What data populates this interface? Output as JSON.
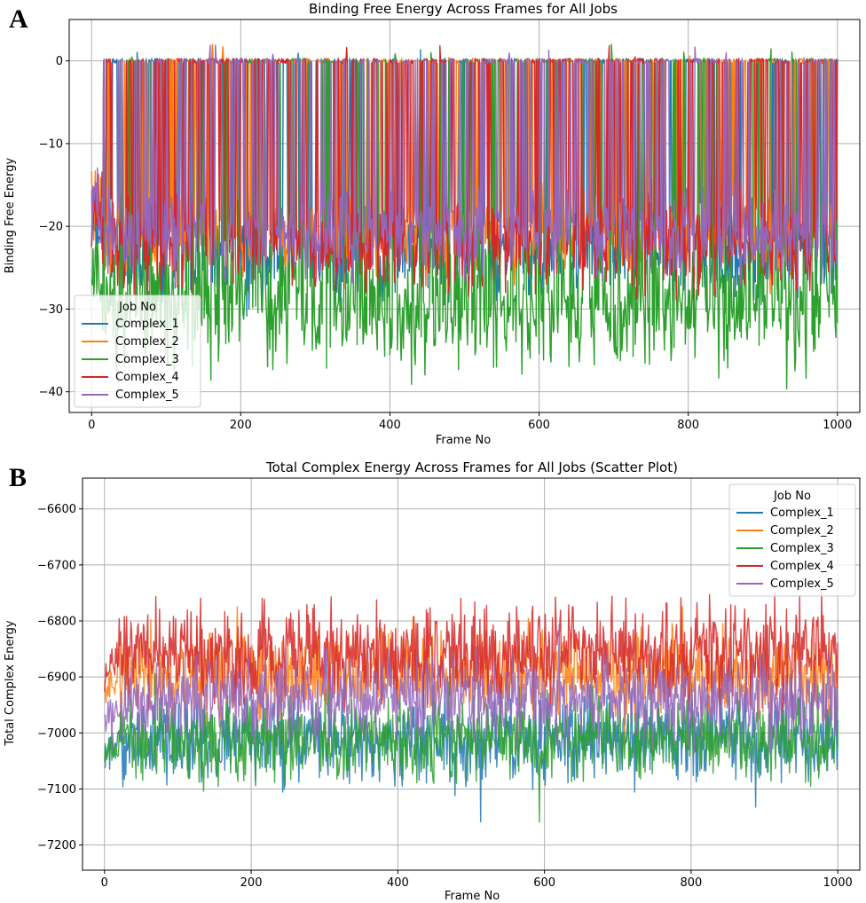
{
  "chart_data": [
    {
      "panel": "A",
      "type": "line",
      "title": "Binding Free Energy Across Frames for All Jobs",
      "xlabel": "Frame No",
      "ylabel": "Binding Free Energy",
      "xlim": [
        -30,
        1030
      ],
      "ylim": [
        -42.5,
        5
      ],
      "xticks": [
        0,
        200,
        400,
        600,
        800,
        1000
      ],
      "yticks": [
        0,
        -10,
        -20,
        -30,
        -40
      ],
      "grid": true,
      "legend": {
        "title": "Job No",
        "position": "lower-left"
      },
      "series": [
        {
          "name": "Complex_1",
          "color": "#1f77b4",
          "baseline": -24,
          "spread": 3.5,
          "zero_prob": 0.24
        },
        {
          "name": "Complex_2",
          "color": "#ff7f0e",
          "baseline": -21,
          "spread": 3.5,
          "zero_prob": 0.24
        },
        {
          "name": "Complex_3",
          "color": "#2ca02c",
          "baseline": -30,
          "spread": 4.5,
          "zero_prob": 0.14
        },
        {
          "name": "Complex_4",
          "color": "#d62728",
          "baseline": -22,
          "spread": 3.5,
          "zero_prob": 0.24
        },
        {
          "name": "Complex_5",
          "color": "#9467bd",
          "baseline": -21,
          "spread": 3,
          "zero_prob": 0.2
        }
      ]
    },
    {
      "panel": "B",
      "type": "line",
      "title": "Total Complex Energy Across Frames for All Jobs (Scatter Plot)",
      "xlabel": "Frame No",
      "ylabel": "Total Complex Energy",
      "xlim": [
        -30,
        1030
      ],
      "ylim": [
        -7245,
        -6545
      ],
      "xticks": [
        0,
        200,
        400,
        600,
        800,
        1000
      ],
      "yticks": [
        -6600,
        -6700,
        -6800,
        -6900,
        -7000,
        -7100,
        -7200
      ],
      "grid": true,
      "legend": {
        "title": "Job No",
        "position": "upper-right"
      },
      "series": [
        {
          "name": "Complex_1",
          "color": "#1f77b4",
          "baseline": -7010,
          "spread": 40
        },
        {
          "name": "Complex_2",
          "color": "#ff7f0e",
          "baseline": -6890,
          "spread": 40
        },
        {
          "name": "Complex_3",
          "color": "#2ca02c",
          "baseline": -7010,
          "spread": 38
        },
        {
          "name": "Complex_4",
          "color": "#d62728",
          "baseline": -6860,
          "spread": 45
        },
        {
          "name": "Complex_5",
          "color": "#9467bd",
          "baseline": -6940,
          "spread": 38
        }
      ]
    }
  ]
}
